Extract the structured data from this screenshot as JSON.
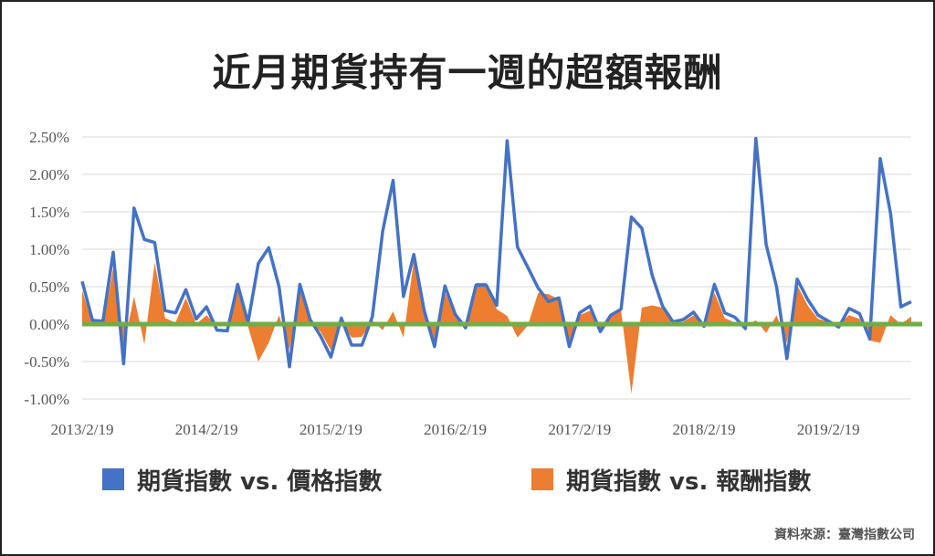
{
  "title": "近月期貨持有一週的超額報酬",
  "source": "資料來源：臺灣指數公司",
  "colors": {
    "series1": "#4472c4",
    "series2": "#ed7d31",
    "zero_line": "#70ad47",
    "grid": "#d9d9d9"
  },
  "chart_data": {
    "type": "line",
    "ylim": [
      -0.01,
      0.025
    ],
    "yticks": [
      0.025,
      0.02,
      0.015,
      0.01,
      0.005,
      0,
      -0.005,
      -0.01
    ],
    "ytick_labels": [
      "2.50%",
      "2.00%",
      "1.50%",
      "1.00%",
      "0.50%",
      "0.00%",
      "-0.50%",
      "-1.00%"
    ],
    "xtick_labels": [
      "2013/2/19",
      "2014/2/19",
      "2015/2/19",
      "2016/2/19",
      "2017/2/19",
      "2018/2/19",
      "2019/2/19"
    ],
    "xtick_index": [
      0,
      12,
      24,
      36,
      48,
      60,
      72
    ],
    "grid": true,
    "legend_placement": "bottom",
    "series": [
      {
        "name": "期貨指數 vs. 價格指數",
        "style": "line",
        "values": [
          0.0057,
          0.0005,
          0.0004,
          0.0096,
          -0.0053,
          0.0155,
          0.0113,
          0.0109,
          0.0018,
          0.0015,
          0.0046,
          0.0007,
          0.0023,
          -0.0008,
          -0.0009,
          0.0053,
          0.0002,
          0.0081,
          0.0102,
          0.005,
          -0.0057,
          0.0053,
          0.0006,
          -0.0016,
          -0.0044,
          0.0008,
          -0.0028,
          -0.0028,
          0.001,
          0.0124,
          0.0192,
          0.0037,
          0.0093,
          0.0018,
          -0.003,
          0.0051,
          0.0013,
          -0.0005,
          0.0052,
          0.0052,
          0.0025,
          0.0245,
          0.0103,
          0.0076,
          0.0048,
          0.003,
          0.0035,
          -0.003,
          0.0015,
          0.0024,
          -0.001,
          0.0012,
          0.002,
          0.0143,
          0.0128,
          0.0065,
          0.0024,
          0.0003,
          0.0006,
          0.0016,
          -0.0003,
          0.0053,
          0.0015,
          0.0009,
          -0.0006,
          0.0248,
          0.0106,
          0.005,
          -0.0046,
          0.006,
          0.0033,
          0.0012,
          0.0004,
          -0.0004,
          0.0021,
          0.0014,
          -0.002,
          0.0221,
          0.0148,
          0.0023,
          0.003
        ]
      },
      {
        "name": "期貨指數 vs. 報酬指數",
        "style": "area",
        "values": [
          0.0045,
          0.0,
          -0.0003,
          0.0075,
          -0.003,
          0.0037,
          -0.0027,
          0.0082,
          0.0008,
          0.0002,
          0.0035,
          0.0,
          0.0012,
          -0.0003,
          -0.0002,
          0.0045,
          -0.0003,
          -0.005,
          -0.0025,
          0.0012,
          -0.0035,
          0.0048,
          0.0003,
          -0.001,
          -0.0035,
          0.0003,
          -0.0018,
          -0.0017,
          0.0005,
          -0.0008,
          0.0017,
          -0.0018,
          0.0085,
          0.0011,
          -0.0022,
          0.0043,
          0.001,
          -0.0003,
          0.0055,
          0.0055,
          0.002,
          0.0011,
          -0.0018,
          -0.0002,
          0.0042,
          0.004,
          0.0033,
          -0.0022,
          0.0012,
          0.0018,
          -0.0008,
          0.0013,
          0.0018,
          -0.0093,
          0.0022,
          0.0025,
          0.0022,
          0.0001,
          0.0003,
          0.0012,
          -0.0002,
          0.0042,
          0.0008,
          0.0002,
          -0.0002,
          0.0005,
          -0.0012,
          0.0012,
          -0.0025,
          0.0052,
          0.0025,
          0.0007,
          0.0003,
          0.0,
          0.0012,
          0.0007,
          -0.0022,
          -0.0025,
          0.0012,
          0.0,
          0.001
        ]
      }
    ]
  }
}
